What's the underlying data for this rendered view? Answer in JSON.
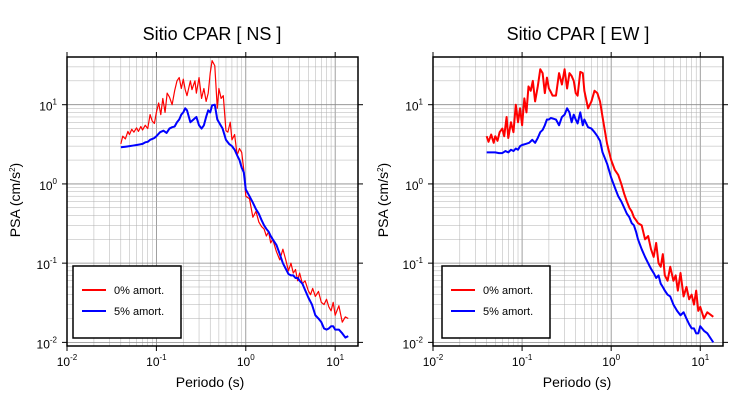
{
  "chart_data": [
    {
      "type": "line",
      "title": "Sitio CPAR [ NS ]",
      "xlabel": "Periodo (s)",
      "ylabel": "PSA (cm/s",
      "ylabel_sup": "2",
      "ylabel_end": ")",
      "x_scale": "log",
      "y_scale": "log",
      "xlim": [
        0.01,
        18
      ],
      "ylim": [
        0.009,
        40
      ],
      "grid": true,
      "legend_position": "bottom-left",
      "x_ticks": [
        {
          "base": "10",
          "exp": "-2",
          "value": 0.01
        },
        {
          "base": "10",
          "exp": "-1",
          "value": 0.1
        },
        {
          "base": "10",
          "exp": "0",
          "value": 1
        },
        {
          "base": "10",
          "exp": "1",
          "value": 10
        }
      ],
      "y_ticks": [
        {
          "base": "10",
          "exp": "-2",
          "value": 0.01
        },
        {
          "base": "10",
          "exp": "-1",
          "value": 0.1
        },
        {
          "base": "10",
          "exp": "0",
          "value": 1
        },
        {
          "base": "10",
          "exp": "1",
          "value": 10
        }
      ],
      "series": [
        {
          "name": "0% amort.",
          "color": "#ff0000",
          "width": 1.2,
          "x": [
            0.04,
            0.042,
            0.045,
            0.048,
            0.05,
            0.053,
            0.056,
            0.06,
            0.063,
            0.067,
            0.07,
            0.075,
            0.08,
            0.085,
            0.09,
            0.095,
            0.1,
            0.106,
            0.112,
            0.118,
            0.125,
            0.132,
            0.14,
            0.15,
            0.16,
            0.17,
            0.18,
            0.19,
            0.2,
            0.21,
            0.22,
            0.24,
            0.25,
            0.27,
            0.28,
            0.3,
            0.32,
            0.34,
            0.36,
            0.38,
            0.4,
            0.42,
            0.45,
            0.48,
            0.5,
            0.53,
            0.56,
            0.6,
            0.63,
            0.67,
            0.7,
            0.75,
            0.8,
            0.85,
            0.9,
            0.95,
            1.0,
            1.1,
            1.2,
            1.3,
            1.4,
            1.5,
            1.6,
            1.7,
            1.8,
            1.9,
            2.0,
            2.2,
            2.4,
            2.6,
            2.8,
            3.0,
            3.2,
            3.4,
            3.6,
            3.8,
            4.0,
            4.3,
            4.6,
            5.0,
            5.3,
            5.6,
            6.0,
            6.5,
            7.0,
            7.5,
            8.0,
            8.5,
            9.0,
            9.5,
            10.0,
            11.0,
            12.0,
            13.0,
            14.0
          ],
          "y": [
            3.2,
            4.0,
            3.7,
            4.6,
            4.2,
            4.9,
            4.5,
            5.1,
            4.6,
            5.3,
            4.8,
            5.5,
            5.0,
            7.5,
            6.2,
            5.8,
            8.0,
            10.5,
            7.5,
            12.0,
            8.0,
            14.0,
            12.5,
            10.0,
            15.0,
            20.0,
            22.0,
            16.0,
            21.0,
            15.5,
            13.0,
            20.0,
            15.5,
            20.0,
            14.0,
            22.0,
            12.0,
            16.0,
            11.0,
            14.0,
            25.0,
            36.0,
            31.0,
            9.0,
            16.0,
            12.0,
            13.0,
            4.7,
            4.5,
            6.0,
            3.6,
            4.2,
            2.3,
            2.8,
            2.5,
            1.5,
            0.7,
            0.65,
            0.38,
            0.45,
            0.33,
            0.29,
            0.27,
            0.22,
            0.25,
            0.18,
            0.2,
            0.14,
            0.11,
            0.15,
            0.11,
            0.08,
            0.1,
            0.075,
            0.083,
            0.06,
            0.075,
            0.055,
            0.06,
            0.045,
            0.04,
            0.048,
            0.038,
            0.044,
            0.032,
            0.03,
            0.035,
            0.028,
            0.025,
            0.032,
            0.022,
            0.029,
            0.018,
            0.021,
            0.02
          ]
        },
        {
          "name": "5% amort.",
          "color": "#0000ff",
          "width": 2,
          "x": [
            0.04,
            0.045,
            0.05,
            0.055,
            0.06,
            0.065,
            0.07,
            0.075,
            0.08,
            0.085,
            0.09,
            0.095,
            0.1,
            0.11,
            0.12,
            0.13,
            0.14,
            0.15,
            0.16,
            0.17,
            0.18,
            0.19,
            0.2,
            0.21,
            0.22,
            0.24,
            0.26,
            0.28,
            0.3,
            0.32,
            0.34,
            0.36,
            0.38,
            0.4,
            0.42,
            0.45,
            0.48,
            0.5,
            0.55,
            0.6,
            0.65,
            0.7,
            0.75,
            0.8,
            0.85,
            0.9,
            0.95,
            1.0,
            1.1,
            1.2,
            1.3,
            1.4,
            1.5,
            1.6,
            1.7,
            1.8,
            1.9,
            2.0,
            2.2,
            2.4,
            2.6,
            2.8,
            3.0,
            3.2,
            3.4,
            3.6,
            3.8,
            4.0,
            4.3,
            4.6,
            5.0,
            5.5,
            6.0,
            6.5,
            7.0,
            7.5,
            8.0,
            8.5,
            9.0,
            9.5,
            10.0,
            11.0,
            12.0,
            13.0,
            14.0
          ],
          "y": [
            2.9,
            2.95,
            3.0,
            3.05,
            3.1,
            3.15,
            3.2,
            3.35,
            3.4,
            3.6,
            3.7,
            3.8,
            4.0,
            4.5,
            4.7,
            4.4,
            5.0,
            5.2,
            5.3,
            6.0,
            6.5,
            7.5,
            8.0,
            9.0,
            8.5,
            6.0,
            6.5,
            7.0,
            5.5,
            5.0,
            5.5,
            7.0,
            8.5,
            8.0,
            9.8,
            10.0,
            6.5,
            6.0,
            5.0,
            3.6,
            3.2,
            3.0,
            2.7,
            2.3,
            2.0,
            1.6,
            1.4,
            0.85,
            0.7,
            0.58,
            0.48,
            0.42,
            0.35,
            0.3,
            0.27,
            0.25,
            0.22,
            0.2,
            0.17,
            0.13,
            0.1,
            0.085,
            0.073,
            0.07,
            0.07,
            0.065,
            0.065,
            0.06,
            0.055,
            0.046,
            0.037,
            0.03,
            0.022,
            0.02,
            0.018,
            0.015,
            0.0145,
            0.015,
            0.016,
            0.016,
            0.0145,
            0.0145,
            0.013,
            0.0115,
            0.012
          ]
        }
      ]
    },
    {
      "type": "line",
      "title": "Sitio CPAR [ EW ]",
      "xlabel": "Periodo (s)",
      "ylabel": "PSA (cm/s",
      "ylabel_sup": "2",
      "ylabel_end": ")",
      "x_scale": "log",
      "y_scale": "log",
      "xlim": [
        0.01,
        18
      ],
      "ylim": [
        0.009,
        40
      ],
      "grid": true,
      "legend_position": "bottom-left",
      "x_ticks": [
        {
          "base": "10",
          "exp": "-2",
          "value": 0.01
        },
        {
          "base": "10",
          "exp": "-1",
          "value": 0.1
        },
        {
          "base": "10",
          "exp": "0",
          "value": 1
        },
        {
          "base": "10",
          "exp": "1",
          "value": 10
        }
      ],
      "y_ticks": [
        {
          "base": "10",
          "exp": "-2",
          "value": 0.01
        },
        {
          "base": "10",
          "exp": "-1",
          "value": 0.1
        },
        {
          "base": "10",
          "exp": "0",
          "value": 1
        },
        {
          "base": "10",
          "exp": "1",
          "value": 10
        }
      ],
      "series": [
        {
          "name": "0% amort.",
          "color": "#ff0000",
          "width": 2,
          "x": [
            0.04,
            0.042,
            0.045,
            0.048,
            0.05,
            0.053,
            0.056,
            0.06,
            0.063,
            0.067,
            0.07,
            0.075,
            0.08,
            0.085,
            0.09,
            0.095,
            0.1,
            0.106,
            0.112,
            0.118,
            0.125,
            0.132,
            0.14,
            0.15,
            0.16,
            0.17,
            0.18,
            0.19,
            0.2,
            0.21,
            0.22,
            0.24,
            0.26,
            0.28,
            0.3,
            0.32,
            0.34,
            0.36,
            0.38,
            0.4,
            0.42,
            0.45,
            0.48,
            0.5,
            0.55,
            0.6,
            0.65,
            0.7,
            0.75,
            0.8,
            0.9,
            1.0,
            1.1,
            1.2,
            1.3,
            1.4,
            1.5,
            1.6,
            1.7,
            1.8,
            1.9,
            2.0,
            2.2,
            2.4,
            2.6,
            2.8,
            3.0,
            3.2,
            3.4,
            3.6,
            3.8,
            4.0,
            4.3,
            4.6,
            5.0,
            5.3,
            5.6,
            6.0,
            6.5,
            7.0,
            7.5,
            8.0,
            8.5,
            9.0,
            9.5,
            10.0,
            11.0,
            12.0,
            14.0
          ],
          "y": [
            4.0,
            3.4,
            4.2,
            3.3,
            4.0,
            3.5,
            4.5,
            5.0,
            4.0,
            7.0,
            3.8,
            6.0,
            4.5,
            10.0,
            6.0,
            9.0,
            5.5,
            12.0,
            8.0,
            17.0,
            15.0,
            20.0,
            11.0,
            17.0,
            28.0,
            25.0,
            14.0,
            22.0,
            16.0,
            14.5,
            13.0,
            13.0,
            25.0,
            18.0,
            28.0,
            16.0,
            25.0,
            23.0,
            20.0,
            14.0,
            13.0,
            26.0,
            25.0,
            15.0,
            9.0,
            11.0,
            15.0,
            14.0,
            11.0,
            7.0,
            3.2,
            2.0,
            1.5,
            1.3,
            1.0,
            0.75,
            0.6,
            0.5,
            0.45,
            0.38,
            0.35,
            0.32,
            0.3,
            0.2,
            0.22,
            0.15,
            0.12,
            0.18,
            0.1,
            0.09,
            0.13,
            0.07,
            0.06,
            0.09,
            0.06,
            0.07,
            0.045,
            0.075,
            0.038,
            0.05,
            0.035,
            0.04,
            0.03,
            0.045,
            0.025,
            0.028,
            0.02,
            0.024,
            0.021
          ]
        },
        {
          "name": "5% amort.",
          "color": "#0000ff",
          "width": 2,
          "x": [
            0.04,
            0.045,
            0.05,
            0.055,
            0.06,
            0.065,
            0.07,
            0.075,
            0.08,
            0.085,
            0.09,
            0.095,
            0.1,
            0.11,
            0.12,
            0.13,
            0.14,
            0.15,
            0.16,
            0.17,
            0.18,
            0.19,
            0.2,
            0.21,
            0.22,
            0.24,
            0.26,
            0.28,
            0.3,
            0.32,
            0.34,
            0.36,
            0.38,
            0.4,
            0.42,
            0.45,
            0.48,
            0.5,
            0.55,
            0.6,
            0.65,
            0.7,
            0.75,
            0.8,
            0.9,
            1.0,
            1.1,
            1.2,
            1.3,
            1.4,
            1.5,
            1.6,
            1.7,
            1.8,
            1.9,
            2.0,
            2.2,
            2.4,
            2.6,
            2.8,
            3.0,
            3.2,
            3.4,
            3.6,
            3.8,
            4.0,
            4.3,
            4.6,
            5.0,
            5.5,
            6.0,
            6.5,
            7.0,
            7.5,
            8.0,
            8.5,
            9.0,
            9.5,
            10.0,
            11.0,
            12.0,
            14.0
          ],
          "y": [
            2.5,
            2.5,
            2.5,
            2.45,
            2.45,
            2.6,
            2.5,
            2.7,
            2.6,
            2.8,
            2.7,
            3.0,
            3.1,
            3.2,
            3.3,
            3.6,
            3.3,
            3.8,
            4.5,
            4.8,
            5.5,
            6.5,
            6.5,
            6.8,
            6.7,
            6.5,
            5.5,
            7.0,
            7.5,
            9.0,
            8.0,
            6.0,
            7.5,
            6.5,
            5.8,
            8.0,
            5.5,
            6.5,
            5.2,
            5.0,
            4.5,
            4.0,
            3.5,
            2.5,
            1.8,
            1.2,
            0.9,
            0.7,
            0.6,
            0.5,
            0.42,
            0.38,
            0.32,
            0.3,
            0.25,
            0.2,
            0.15,
            0.12,
            0.1,
            0.085,
            0.075,
            0.065,
            0.07,
            0.055,
            0.05,
            0.045,
            0.04,
            0.038,
            0.03,
            0.025,
            0.022,
            0.024,
            0.02,
            0.017,
            0.015,
            0.015,
            0.013,
            0.013,
            0.016,
            0.014,
            0.013,
            0.01
          ]
        }
      ]
    }
  ]
}
